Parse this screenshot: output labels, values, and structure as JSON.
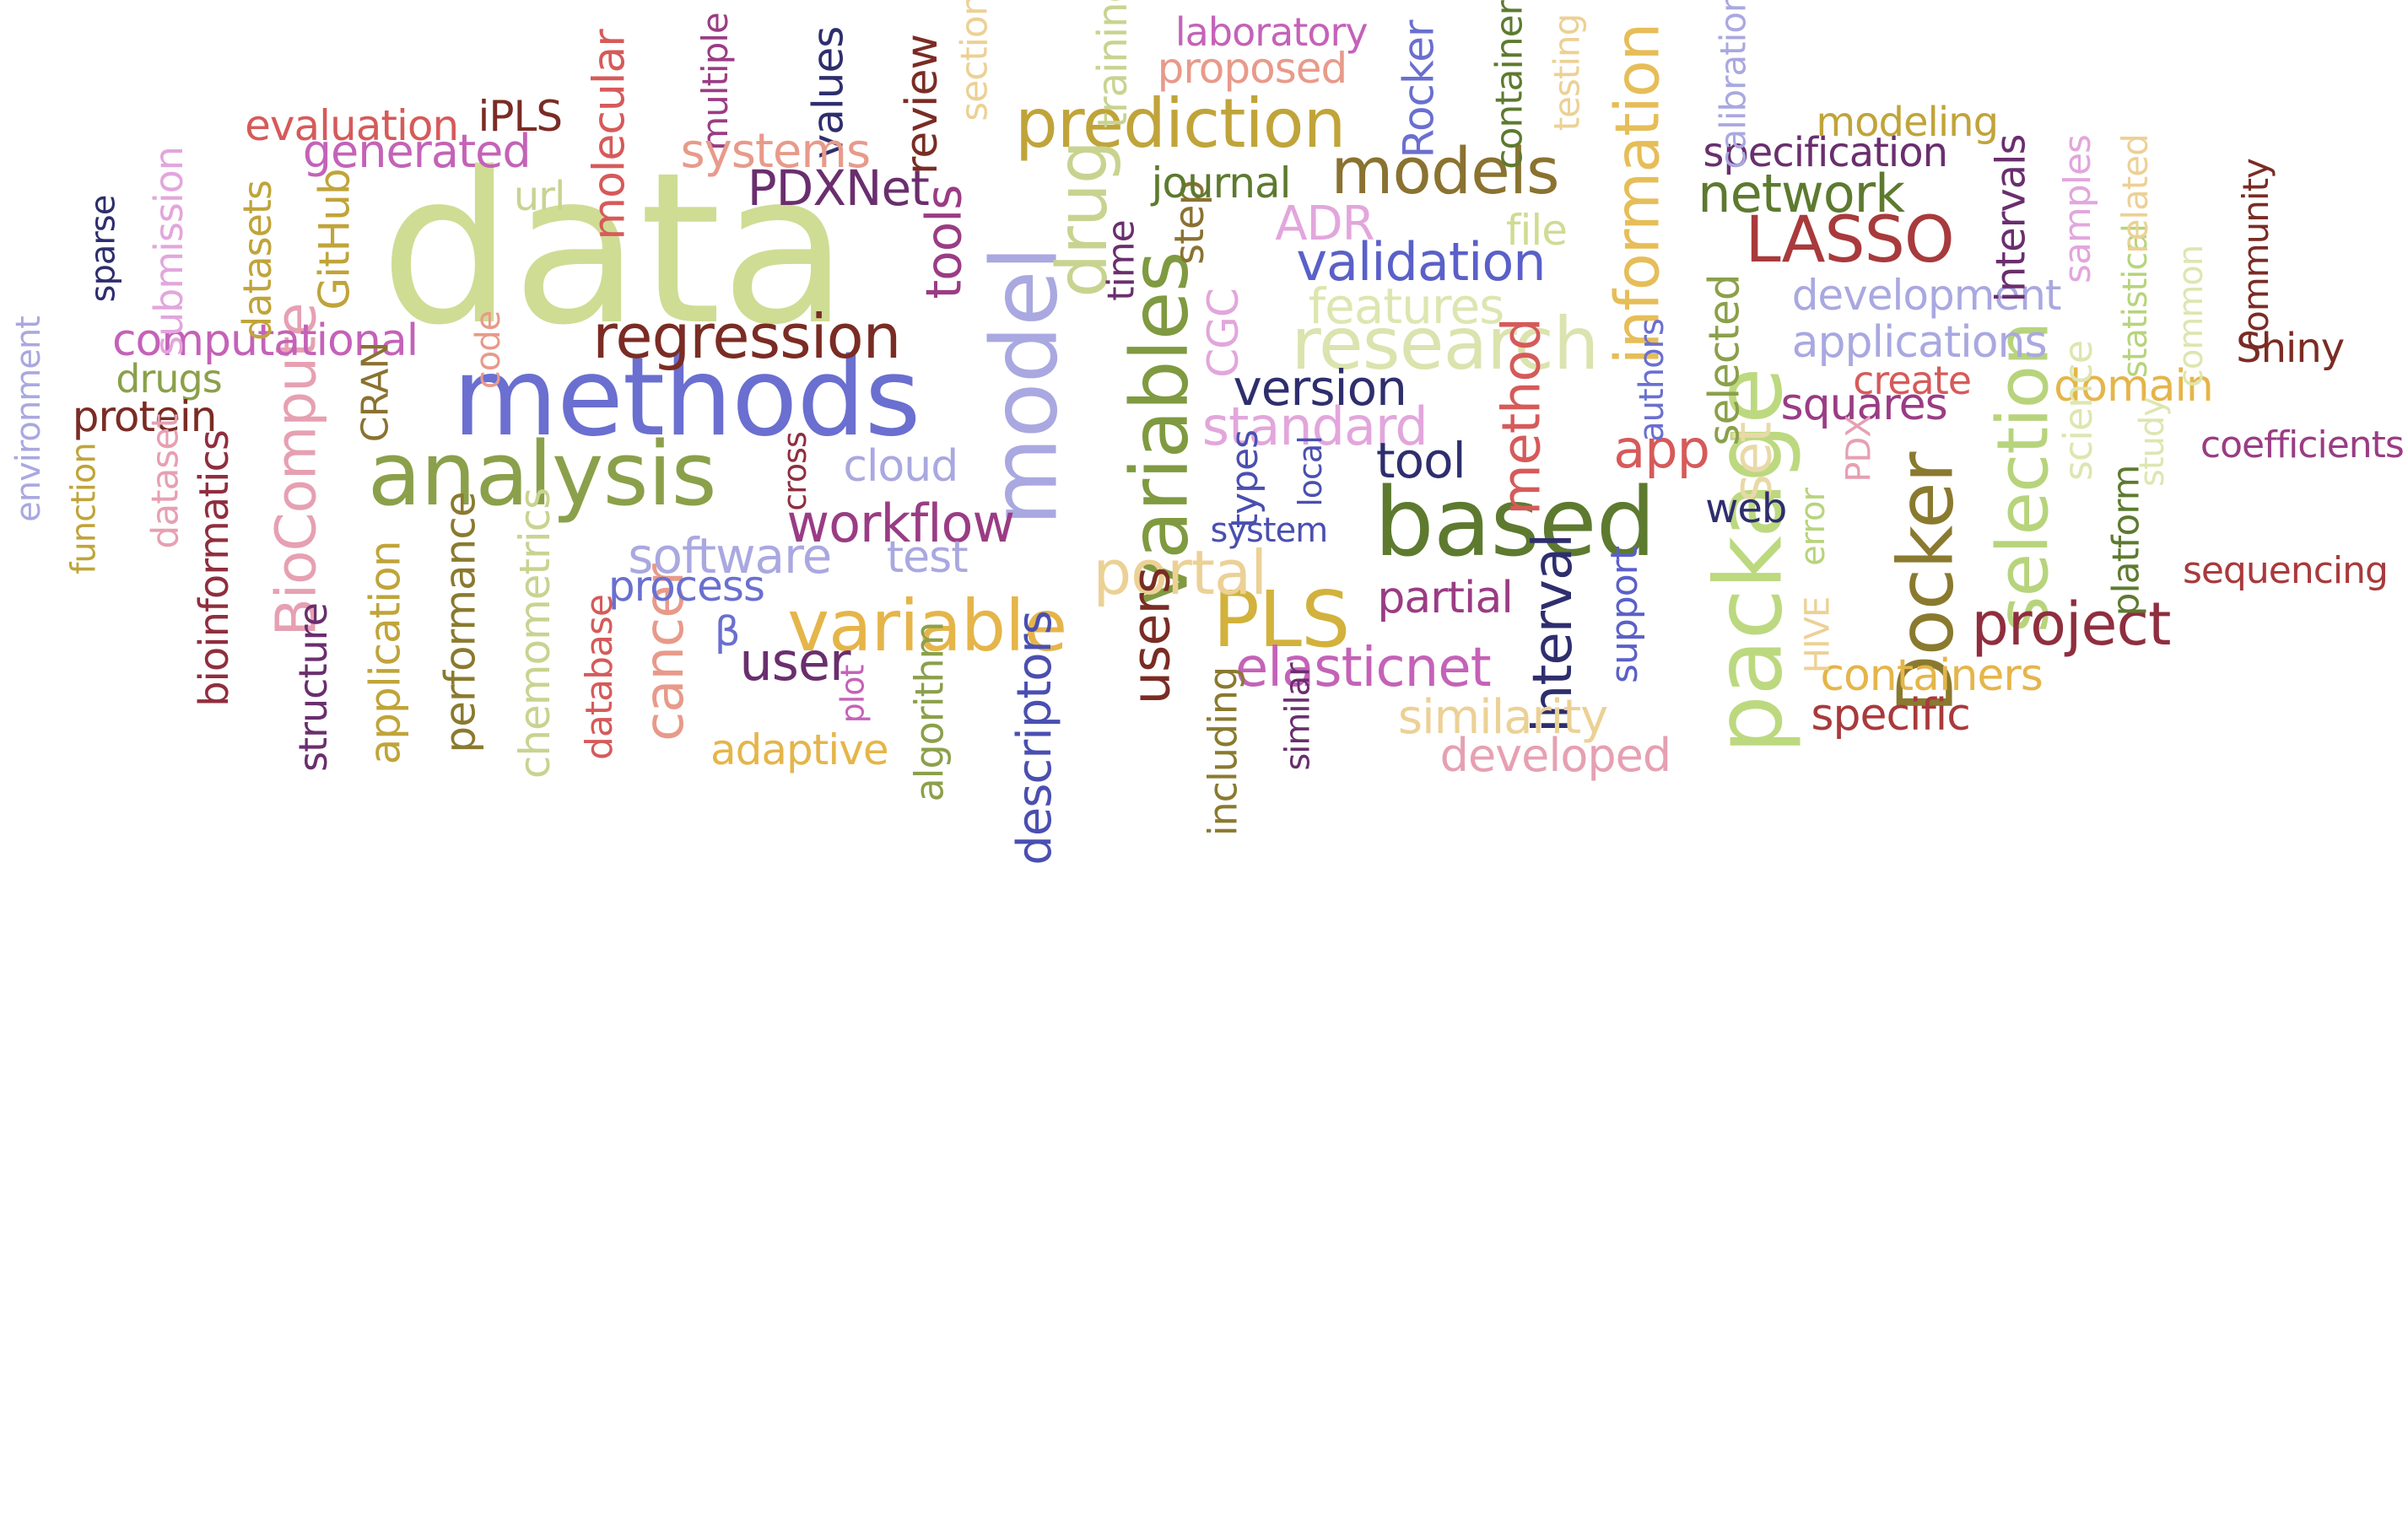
{
  "palette": {
    "data": "#cfdc94",
    "methods": "#6a6fd0",
    "analysis": "#8ba04a",
    "model": "#a9a8e0",
    "based": "#5d7a2f",
    "package": "#bcd97f",
    "variables": "#7f9a40",
    "regression": "#7a2c24",
    "prediction": "#c0a43a",
    "research": "#dbe3ae",
    "docker": "#8a7a2f",
    "selection": "#b7d47c",
    "drug": "#c9d390",
    "variable": "#e5b54a",
    "pls": "#d2b23c",
    "lasso": "#a83a3c",
    "models": "#8a7230",
    "information": "#e6bd58",
    "biocompute": "#e6a0b2",
    "portal": "#ecd195",
    "project": "#8f2e3e",
    "workflow": "#9a3c84"
  },
  "words": [
    {
      "text": "data",
      "color": "#cfdc94"
    },
    {
      "text": "methods",
      "color": "#6a6fd0"
    },
    {
      "text": "analysis",
      "color": "#8ba04a"
    },
    {
      "text": "model",
      "color": "#a9a8e0"
    },
    {
      "text": "based",
      "color": "#5d7a2f"
    },
    {
      "text": "package",
      "color": "#bcd97f"
    },
    {
      "text": "variables",
      "color": "#7f9a40"
    },
    {
      "text": "regression",
      "color": "#7a2c24"
    },
    {
      "text": "prediction",
      "color": "#c0a43a"
    },
    {
      "text": "research",
      "color": "#dbe3ae"
    },
    {
      "text": "Docker",
      "color": "#8a7a2f"
    },
    {
      "text": "selection",
      "color": "#b7d47c"
    },
    {
      "text": "drug",
      "color": "#c9d390"
    },
    {
      "text": "variable",
      "color": "#e5b54a"
    },
    {
      "text": "PLS",
      "color": "#d2b23c"
    },
    {
      "text": "LASSO",
      "color": "#a83a3c"
    },
    {
      "text": "models",
      "color": "#8a7230"
    },
    {
      "text": "information",
      "color": "#e6bd58"
    },
    {
      "text": "BioCompute",
      "color": "#e6a0b2"
    },
    {
      "text": "portal",
      "color": "#ecd195"
    },
    {
      "text": "project",
      "color": "#8f2e3e"
    },
    {
      "text": "workflow",
      "color": "#9a3c84"
    },
    {
      "text": "users",
      "color": "#7a2c24"
    },
    {
      "text": "elasticnet",
      "color": "#c462b8"
    },
    {
      "text": "interval",
      "color": "#2e2e6e"
    },
    {
      "text": "method",
      "color": "#d65a5a"
    },
    {
      "text": "cancer",
      "color": "#e89a8a"
    },
    {
      "text": "user",
      "color": "#6a2e6e"
    },
    {
      "text": "descriptors",
      "color": "#4a4fb0"
    },
    {
      "text": "set",
      "color": "#e8d9a8"
    },
    {
      "text": "app",
      "color": "#d65a5a"
    },
    {
      "text": "validation",
      "color": "#5a60c8"
    },
    {
      "text": "features",
      "color": "#dde6b0"
    },
    {
      "text": "standard",
      "color": "#e2a6dc"
    },
    {
      "text": "version",
      "color": "#2e2e6e"
    },
    {
      "text": "PDXNet",
      "color": "#6a2e6e"
    },
    {
      "text": "network",
      "color": "#5d7a2f"
    },
    {
      "text": "tools",
      "color": "#9a3c84"
    },
    {
      "text": "software",
      "color": "#a9a8e0"
    },
    {
      "text": "computational",
      "color": "#c462b8"
    },
    {
      "text": "performance",
      "color": "#8a7a2f"
    },
    {
      "text": "chemometrics",
      "color": "#c9d390"
    },
    {
      "text": "application",
      "color": "#c0a43a"
    },
    {
      "text": "bioinformatics",
      "color": "#8f2e3e"
    },
    {
      "text": "containers",
      "color": "#e5b54a"
    },
    {
      "text": "similarity",
      "color": "#ecd195"
    },
    {
      "text": "developed",
      "color": "#e6a0b2"
    },
    {
      "text": "algorithm",
      "color": "#8ba04a"
    },
    {
      "text": "including",
      "color": "#8a7a2f"
    },
    {
      "text": "specific",
      "color": "#a83a3c"
    },
    {
      "text": "development",
      "color": "#a9a8e0"
    },
    {
      "text": "applications",
      "color": "#a9a8e0"
    },
    {
      "text": "squares",
      "color": "#9a3c84"
    },
    {
      "text": "domain",
      "color": "#e5b54a"
    },
    {
      "text": "tool",
      "color": "#2e2e6e"
    },
    {
      "text": "partial",
      "color": "#9a3c84"
    },
    {
      "text": "support",
      "color": "#5a60c8"
    },
    {
      "text": "selected",
      "color": "#8ba04a"
    },
    {
      "text": "intervals",
      "color": "#6a2e6e"
    },
    {
      "text": "step",
      "color": "#8a7230"
    },
    {
      "text": "CGC",
      "color": "#e2a6dc"
    },
    {
      "text": "journal",
      "color": "#5d7a2f"
    },
    {
      "text": "ADR",
      "color": "#e2a6dc"
    },
    {
      "text": "file",
      "color": "#cfdc94"
    },
    {
      "text": "time",
      "color": "#6a2e6e"
    },
    {
      "text": "process",
      "color": "#6a6fd0"
    },
    {
      "text": "test",
      "color": "#a9a8e0"
    },
    {
      "text": "cloud",
      "color": "#a9a8e0"
    },
    {
      "text": "cross",
      "color": "#8f2e3e"
    },
    {
      "text": "types",
      "color": "#4a4fb0"
    },
    {
      "text": "local",
      "color": "#4a4fb0"
    },
    {
      "text": "system",
      "color": "#4a4fb0"
    },
    {
      "text": "web",
      "color": "#2e2e6e"
    },
    {
      "text": "error",
      "color": "#b7d47c"
    },
    {
      "text": "PDX",
      "color": "#e6a0b2"
    },
    {
      "text": "HIVE",
      "color": "#ecd195"
    },
    {
      "text": "platform",
      "color": "#5d7a2f"
    },
    {
      "text": "sequencing",
      "color": "#a83a3c"
    },
    {
      "text": "coefficients",
      "color": "#9a3c84"
    },
    {
      "text": "study",
      "color": "#dde6b0"
    },
    {
      "text": "science",
      "color": "#dde6b0"
    },
    {
      "text": "create",
      "color": "#d65a5a"
    },
    {
      "text": "Shiny",
      "color": "#7a2c24"
    },
    {
      "text": "common",
      "color": "#dde6b0"
    },
    {
      "text": "statistical",
      "color": "#b7d47c"
    },
    {
      "text": "community",
      "color": "#7a2c24"
    },
    {
      "text": "related",
      "color": "#ecd195"
    },
    {
      "text": "samples",
      "color": "#e2a6dc"
    },
    {
      "text": "authors",
      "color": "#6a6fd0"
    },
    {
      "text": "specification",
      "color": "#6a2e6e"
    },
    {
      "text": "modeling",
      "color": "#c0a43a"
    },
    {
      "text": "calibration",
      "color": "#a9a8e0"
    },
    {
      "text": "testing",
      "color": "#ecd195"
    },
    {
      "text": "container",
      "color": "#5d7a2f"
    },
    {
      "text": "Rocker",
      "color": "#6a6fd0"
    },
    {
      "text": "proposed",
      "color": "#e89a8a"
    },
    {
      "text": "laboratory",
      "color": "#c462b8"
    },
    {
      "text": "training",
      "color": "#c9d390"
    },
    {
      "text": "section",
      "color": "#ecd195"
    },
    {
      "text": "review",
      "color": "#7a2c24"
    },
    {
      "text": "values",
      "color": "#2e2e6e"
    },
    {
      "text": "multiple",
      "color": "#9a3c84"
    },
    {
      "text": "systems",
      "color": "#e89a8a"
    },
    {
      "text": "molecular",
      "color": "#d65a5a"
    },
    {
      "text": "iPLS",
      "color": "#7a2c24"
    },
    {
      "text": "evaluation",
      "color": "#d65a5a"
    },
    {
      "text": "generated",
      "color": "#c462b8"
    },
    {
      "text": "url",
      "color": "#c9d390"
    },
    {
      "text": "GitHub",
      "color": "#c0a43a"
    },
    {
      "text": "datasets",
      "color": "#c0a43a"
    },
    {
      "text": "submission",
      "color": "#e2a6dc"
    },
    {
      "text": "sparse",
      "color": "#2e2e6e"
    },
    {
      "text": "environment",
      "color": "#a9a8e0"
    },
    {
      "text": "drugs",
      "color": "#8ba04a"
    },
    {
      "text": "protein",
      "color": "#7a2c24"
    },
    {
      "text": "dataset",
      "color": "#e6a0b2"
    },
    {
      "text": "function",
      "color": "#c0a43a"
    },
    {
      "text": "code",
      "color": "#e89a8a"
    },
    {
      "text": "CRAN",
      "color": "#8a7230"
    },
    {
      "text": "structure",
      "color": "#6a2e6e"
    },
    {
      "text": "database",
      "color": "#d65a5a"
    },
    {
      "text": "β",
      "color": "#6a6fd0"
    },
    {
      "text": "plot",
      "color": "#c462b8"
    },
    {
      "text": "adaptive",
      "color": "#e5b54a"
    },
    {
      "text": "similar",
      "color": "#6a2e6e"
    }
  ]
}
